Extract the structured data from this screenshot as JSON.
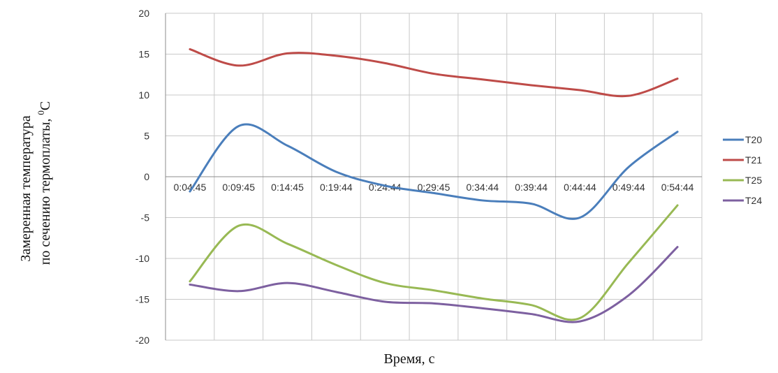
{
  "chart_data": {
    "type": "line",
    "ylabel_line1": "Замеренная температура",
    "ylabel_line2": "по сечению термоплаты,",
    "ylabel_unit_sup": "0",
    "ylabel_unit": "C",
    "xlabel": "Время, с",
    "ylim": [
      -20,
      20
    ],
    "yticks": [
      20,
      15,
      10,
      5,
      0,
      -5,
      -10,
      -15,
      -20
    ],
    "x_categories": [
      "0:04:45",
      "0:09:45",
      "0:14:45",
      "0:19:44",
      "0:24:44",
      "0:29:45",
      "0:34:44",
      "0:39:44",
      "0:44:44",
      "0:49:44",
      "0:54:44"
    ],
    "grid": true,
    "legend_position": "right",
    "series": [
      {
        "name": "T20",
        "color": "#4a7ebb",
        "values": [
          -1.8,
          6.2,
          3.8,
          0.6,
          -1.1,
          -2.0,
          -2.9,
          -3.3,
          -5.0,
          1.2,
          5.5
        ]
      },
      {
        "name": "T21",
        "color": "#be4b48",
        "values": [
          15.6,
          13.6,
          15.1,
          14.8,
          13.9,
          12.6,
          11.9,
          11.2,
          10.6,
          9.9,
          12.0
        ]
      },
      {
        "name": "T25",
        "color": "#98b954",
        "values": [
          -12.8,
          -6.0,
          -8.2,
          -10.8,
          -13.0,
          -13.9,
          -14.9,
          -15.7,
          -17.3,
          -10.5,
          -3.5
        ]
      },
      {
        "name": "T24",
        "color": "#7d60a0",
        "values": [
          -13.2,
          -14.0,
          -13.0,
          -14.1,
          -15.3,
          -15.5,
          -16.1,
          -16.8,
          -17.7,
          -14.5,
          -8.6
        ]
      }
    ]
  }
}
